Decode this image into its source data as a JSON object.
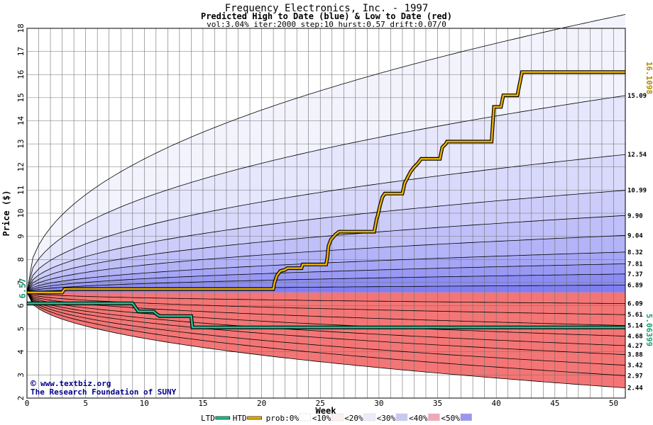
{
  "chart_data": {
    "type": "area",
    "title": "Frequency Electronics, Inc. - 1997",
    "subtitle": "Predicted High to Date (blue) &  Low to Date (red)",
    "params": "vol:3.04% iter:2000 step:10 hurst:0.57 drift:0.07/0",
    "xlabel": "Week",
    "ylabel": "Price ($)",
    "xlim": [
      0,
      51
    ],
    "ylim": [
      2,
      18
    ],
    "x_ticks": [
      0,
      5,
      10,
      15,
      20,
      25,
      30,
      35,
      40,
      45,
      50
    ],
    "y_ticks": [
      2,
      3,
      4,
      5,
      6,
      7,
      8,
      9,
      10,
      11,
      12,
      13,
      14,
      15,
      16,
      17,
      18
    ],
    "grid": true,
    "start_price_label": "6.57",
    "start_price": 6.57,
    "high_final_label": "16.1098",
    "low_final_label": "5.06399",
    "high_levels": [
      18.6,
      15.09,
      12.54,
      10.99,
      9.9,
      9.04,
      8.32,
      7.81,
      7.37,
      6.89
    ],
    "high_level_labels": [
      "15.09",
      "12.54",
      "10.99",
      "9.90",
      "9.04",
      "8.32",
      "7.81",
      "7.37",
      "6.89"
    ],
    "low_levels": [
      6.09,
      5.61,
      5.14,
      4.68,
      4.27,
      3.88,
      3.42,
      2.97,
      2.44
    ],
    "low_level_labels": [
      "6.09",
      "5.61",
      "5.14",
      "4.68",
      "4.27",
      "3.88",
      "3.42",
      "2.97",
      "2.44"
    ],
    "high_to_date": {
      "x": [
        0,
        3,
        3.2,
        21,
        21.1,
        21.3,
        21.6,
        22,
        22.2,
        23.4,
        23.5,
        25.5,
        25.6,
        25.7,
        25.9,
        26.3,
        26.6,
        29.6,
        29.8,
        29.9,
        30.1,
        30.3,
        30.5,
        32,
        32.2,
        32.5,
        32.7,
        33,
        33.3,
        33.6,
        35.2,
        35.4,
        35.7,
        35.8,
        39.6,
        39.8,
        40.4,
        40.6,
        41.8,
        42.2,
        51
      ],
      "y": [
        6.57,
        6.57,
        6.72,
        6.72,
        7.0,
        7.3,
        7.5,
        7.55,
        7.62,
        7.62,
        7.78,
        7.78,
        8.08,
        8.58,
        8.85,
        9.08,
        9.2,
        9.2,
        9.75,
        9.9,
        10.35,
        10.7,
        10.85,
        10.85,
        11.3,
        11.6,
        11.8,
        12.0,
        12.15,
        12.35,
        12.35,
        12.85,
        13.0,
        13.1,
        13.1,
        14.6,
        14.6,
        15.1,
        15.1,
        16.11,
        16.11
      ]
    },
    "low_to_date": {
      "x": [
        0,
        9,
        9.2,
        9.5,
        10.8,
        11,
        11.3,
        14,
        14.1,
        51
      ],
      "y": [
        6.1,
        6.1,
        5.95,
        5.75,
        5.75,
        5.65,
        5.55,
        5.55,
        5.06,
        5.06
      ]
    },
    "legend": [
      "LTD",
      "HTD",
      "prob:0%",
      "<10%",
      "<20%",
      "<30%",
      "<40%",
      "<50%"
    ],
    "legend_colors": [
      "#20c090",
      "#e8b000",
      "#ffffff",
      "#fff0f0",
      "#ebebfc",
      "#c8c8f4",
      "#f0a8b8",
      "#9a96f0"
    ],
    "credits": [
      "www.textbiz.org",
      "The Research Foundation of SUNY"
    ],
    "credit_symbol": "©",
    "colors": {
      "high_band_light": "#f3f3fe",
      "high_band_dark": "#7f7ff3",
      "low_band_light": "#fff2f2",
      "low_band_dark": "#f47575",
      "high_label": "#b08800",
      "low_label": "#189a70",
      "credit_text": "#00008b"
    }
  }
}
